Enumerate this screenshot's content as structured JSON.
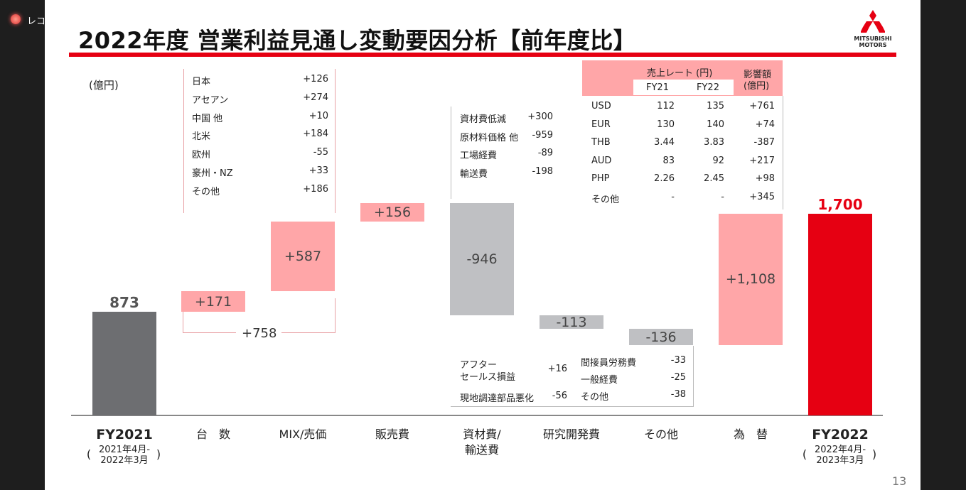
{
  "frame": {
    "recording_label": "レコ"
  },
  "title": "2022年度 営業利益見通し変動要因分析【前年度比】",
  "logo": {
    "text1": "MITSUBISHI",
    "text2": "MOTORS"
  },
  "unit": "(億円)",
  "page_number": "13",
  "colors": {
    "base": "#6d6e71",
    "increase": "#ffa6a8",
    "decrease": "#bfc0c3",
    "result": "#e60012",
    "accent": "#e60012"
  },
  "chart_data": {
    "type": "waterfall",
    "ylabel": "(億円)",
    "categories": [
      {
        "label": "FY2021",
        "sub": [
          "2021年4月-",
          "2022年3月"
        ]
      },
      {
        "label": "台　数"
      },
      {
        "label": "MIX/売価"
      },
      {
        "label": "販売費"
      },
      {
        "label": "資材費/",
        "label2": "輸送費"
      },
      {
        "label": "研究開発費"
      },
      {
        "label": "その他"
      },
      {
        "label": "為　替"
      },
      {
        "label": "FY2022",
        "sub": [
          "2022年4月-",
          "2023年3月"
        ]
      }
    ],
    "values": [
      873,
      171,
      587,
      156,
      -946,
      -113,
      -136,
      1108,
      1700
    ],
    "kinds": [
      "total",
      "delta",
      "delta",
      "delta",
      "delta",
      "delta",
      "delta",
      "delta",
      "total"
    ],
    "data_labels": [
      "873",
      "+171",
      "+587",
      "+156",
      "-946",
      "-113",
      "-136",
      "+1,108",
      "1,700"
    ],
    "bracket_label": "+758"
  },
  "volume_breakdown": [
    {
      "label": "日本",
      "value": "+126"
    },
    {
      "label": "アセアン",
      "value": "+274"
    },
    {
      "label": "中国 他",
      "value": "+10"
    },
    {
      "label": "北米",
      "value": "+184"
    },
    {
      "label": "欧州",
      "value": "-55"
    },
    {
      "label": "豪州・NZ",
      "value": "+33"
    },
    {
      "label": "その他",
      "value": "+186"
    }
  ],
  "material_breakdown": [
    {
      "label": "資材費低減",
      "value": "+300"
    },
    {
      "label": "原材料価格 他",
      "value": "-959"
    },
    {
      "label": "工場経費",
      "value": "-89"
    },
    {
      "label": "輸送費",
      "value": "-198"
    }
  ],
  "fx_table": {
    "header_rate": "売上レート (円)",
    "fy21": "FY21",
    "fy22": "FY22",
    "header_impact1": "影響額",
    "header_impact2": "(億円)",
    "rows": [
      {
        "cur": "USD",
        "fy21": "112",
        "fy22": "135",
        "impact": "+761"
      },
      {
        "cur": "EUR",
        "fy21": "130",
        "fy22": "140",
        "impact": "+74"
      },
      {
        "cur": "THB",
        "fy21": "3.44",
        "fy22": "3.83",
        "impact": "-387"
      },
      {
        "cur": "AUD",
        "fy21": "83",
        "fy22": "92",
        "impact": "+217"
      },
      {
        "cur": "PHP",
        "fy21": "2.26",
        "fy22": "2.45",
        "impact": "+98"
      },
      {
        "cur": "その他",
        "fy21": "-",
        "fy22": "-",
        "impact": "+345"
      }
    ]
  },
  "bottom_breakdown": {
    "left": [
      {
        "label1": "アフター",
        "label2": "セールス損益",
        "value": "+16"
      },
      {
        "label1": "現地調達部品悪化",
        "value": "-56"
      }
    ],
    "right": [
      {
        "label": "間接員労務費",
        "value": "-33"
      },
      {
        "label": "一般経費",
        "value": "-25"
      },
      {
        "label": "その他",
        "value": "-38"
      }
    ]
  }
}
